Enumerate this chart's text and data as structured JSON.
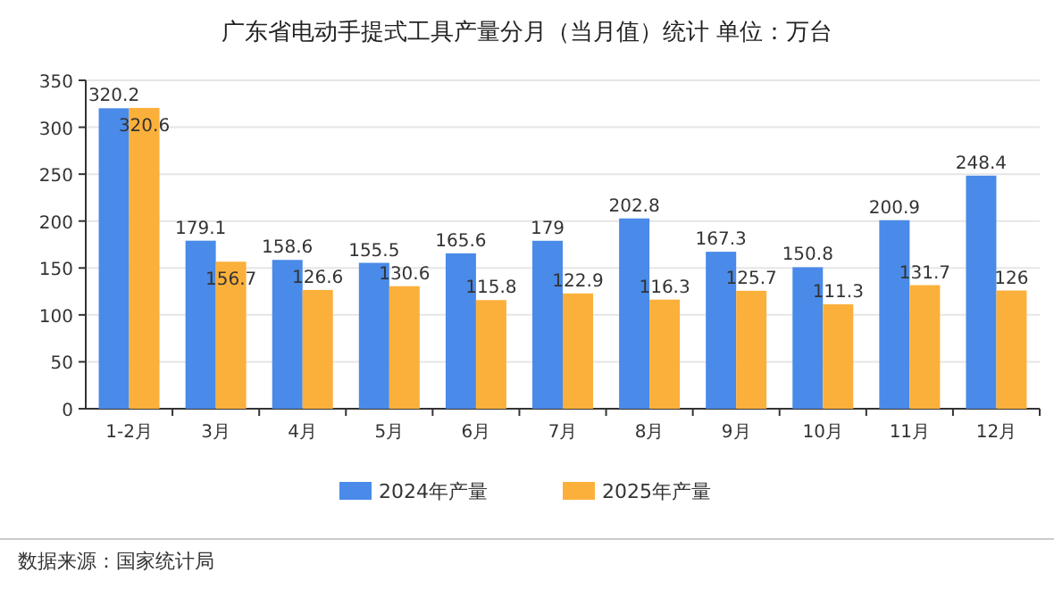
{
  "chart_data": {
    "type": "bar",
    "title": "广东省电动手提式工具产量分月（当月值）统计 单位：万台",
    "categories": [
      "1-2月",
      "3月",
      "4月",
      "5月",
      "6月",
      "7月",
      "8月",
      "9月",
      "10月",
      "11月",
      "12月"
    ],
    "series": [
      {
        "name": "2024年产量",
        "color": "#4a8ae8",
        "values": [
          320.2,
          179.1,
          158.6,
          155.5,
          165.6,
          179,
          202.8,
          167.3,
          150.8,
          200.9,
          248.4
        ]
      },
      {
        "name": "2025年产量",
        "color": "#fbb03b",
        "values": [
          320.6,
          156.7,
          126.6,
          130.6,
          115.8,
          122.9,
          116.3,
          125.7,
          111.3,
          131.7,
          126
        ]
      }
    ],
    "ylim": [
      0,
      350
    ],
    "yticks": [
      0,
      50,
      100,
      150,
      200,
      250,
      300,
      350
    ],
    "grid": "y",
    "legend": "bottom",
    "data_labels": true,
    "annotations": [
      "数据来源：国家统计局"
    ]
  }
}
